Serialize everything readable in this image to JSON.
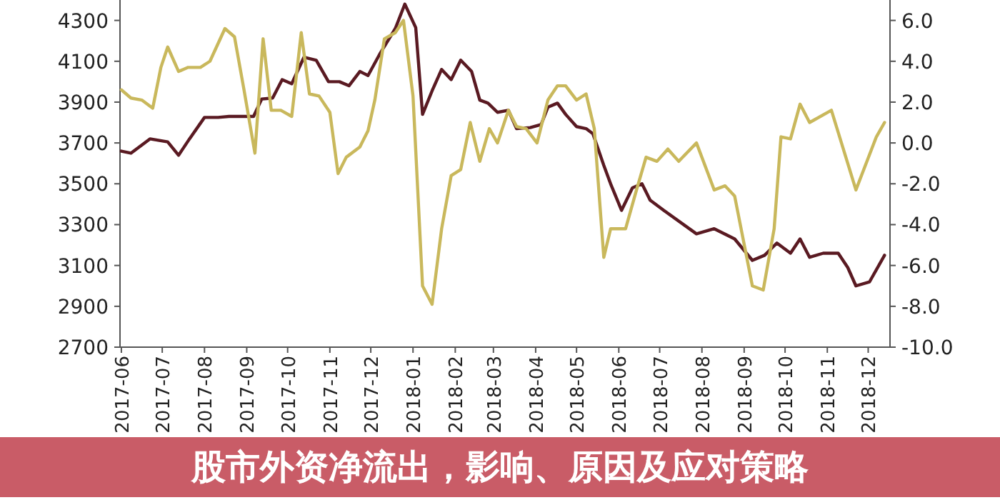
{
  "chart_data": {
    "type": "line",
    "title": "股市外资净流出，影响、原因及应对策略",
    "xlim": [
      "2017-05-31",
      "2018-12-17"
    ],
    "xticks": [
      "2017-06",
      "2017-07",
      "2017-08",
      "2017-09",
      "2017-10",
      "2017-11",
      "2017-12",
      "2018-01",
      "2018-02",
      "2018-03",
      "2018-04",
      "2018-05",
      "2018-06",
      "2018-07",
      "2018-08",
      "2018-09",
      "2018-10",
      "2018-11",
      "2018-12"
    ],
    "ylim": [
      2700,
      4400
    ],
    "yticks": [
      2700,
      2900,
      3100,
      3300,
      3500,
      3700,
      3900,
      4100,
      4300
    ],
    "y2lim": [
      -10,
      7
    ],
    "y2ticks": [
      {
        "value": -10,
        "label": "-10.0"
      },
      {
        "value": -8,
        "label": "-8.0"
      },
      {
        "value": -6,
        "label": "-6.0"
      },
      {
        "value": -4,
        "label": "-4.0"
      },
      {
        "value": -2,
        "label": "-2.0"
      },
      {
        "value": 0,
        "label": "0.0"
      },
      {
        "value": 2,
        "label": "2.0"
      },
      {
        "value": 4,
        "label": "4.0"
      },
      {
        "value": 6,
        "label": "6.0"
      }
    ],
    "grid": false,
    "series": [
      {
        "color": "#5a1a22",
        "x": [
          "2017-06-01",
          "2017-06-08",
          "2017-06-22",
          "2017-07-05",
          "2017-07-13",
          "2017-07-21",
          "2017-08-01",
          "2017-08-11",
          "2017-08-19",
          "2017-09-06",
          "2017-09-12",
          "2017-09-20",
          "2017-09-27",
          "2017-10-04",
          "2017-10-13",
          "2017-10-22",
          "2017-10-31",
          "2017-11-08",
          "2017-11-15",
          "2017-11-23",
          "2017-11-29",
          "2017-12-08",
          "2017-12-19",
          "2017-12-26",
          "2018-01-03",
          "2018-01-08",
          "2018-01-15",
          "2018-01-22",
          "2018-01-29",
          "2018-02-05",
          "2018-02-13",
          "2018-02-19",
          "2018-02-25",
          "2018-03-04",
          "2018-03-12",
          "2018-03-18",
          "2018-03-28",
          "2018-04-05",
          "2018-04-10",
          "2018-04-17",
          "2018-04-23",
          "2018-05-01",
          "2018-05-08",
          "2018-05-13",
          "2018-05-21",
          "2018-05-26",
          "2018-06-03",
          "2018-06-11",
          "2018-06-18",
          "2018-06-24",
          "2018-07-04",
          "2018-07-28",
          "2018-08-10",
          "2018-08-25",
          "2018-09-07",
          "2018-09-16",
          "2018-09-25",
          "2018-10-05",
          "2018-10-12",
          "2018-10-19",
          "2018-10-29",
          "2018-11-09",
          "2018-11-16",
          "2018-11-22",
          "2018-12-02",
          "2018-12-13"
        ],
        "values": [
          3660,
          3650,
          3720,
          3705,
          3640,
          3720,
          3825,
          3825,
          3830,
          3830,
          3915,
          3920,
          4010,
          3990,
          4120,
          4105,
          4000,
          4000,
          3980,
          4050,
          4030,
          4140,
          4260,
          4380,
          4265,
          3840,
          3955,
          4060,
          4010,
          4105,
          4050,
          3910,
          3895,
          3850,
          3860,
          3770,
          3775,
          3790,
          3875,
          3895,
          3840,
          3780,
          3770,
          3745,
          3590,
          3500,
          3370,
          3480,
          3500,
          3420,
          3370,
          3255,
          3280,
          3230,
          3125,
          3150,
          3210,
          3160,
          3230,
          3140,
          3160,
          3160,
          3090,
          3000,
          3020,
          3150
        ]
      },
      {
        "color": "#c9b85c",
        "axis": "y2",
        "x": [
          "2017-06-01",
          "2017-06-08",
          "2017-06-16",
          "2017-06-24",
          "2017-06-30",
          "2017-07-05",
          "2017-07-13",
          "2017-07-20",
          "2017-07-29",
          "2017-08-05",
          "2017-08-16",
          "2017-08-23",
          "2017-08-30",
          "2017-09-07",
          "2017-09-13",
          "2017-09-19",
          "2017-09-26",
          "2017-10-04",
          "2017-10-11",
          "2017-10-17",
          "2017-10-24",
          "2017-11-01",
          "2017-11-07",
          "2017-11-13",
          "2017-11-23",
          "2017-11-29",
          "2017-12-04",
          "2017-12-11",
          "2017-12-19",
          "2017-12-25",
          "2018-01-01",
          "2018-01-08",
          "2018-01-15",
          "2018-01-22",
          "2018-01-29",
          "2018-02-05",
          "2018-02-12",
          "2018-02-19",
          "2018-02-26",
          "2018-03-04",
          "2018-03-12",
          "2018-03-18",
          "2018-03-25",
          "2018-04-02",
          "2018-04-10",
          "2018-04-17",
          "2018-04-23",
          "2018-05-01",
          "2018-05-08",
          "2018-05-14",
          "2018-05-21",
          "2018-05-26",
          "2018-06-06",
          "2018-06-14",
          "2018-06-21",
          "2018-06-29",
          "2018-07-07",
          "2018-07-15",
          "2018-07-28",
          "2018-08-10",
          "2018-08-18",
          "2018-08-25",
          "2018-09-07",
          "2018-09-15",
          "2018-09-23",
          "2018-09-28",
          "2018-10-05",
          "2018-10-12",
          "2018-10-19",
          "2018-11-04",
          "2018-11-22",
          "2018-12-07",
          "2018-12-13"
        ],
        "values": [
          2.6,
          2.2,
          2.1,
          1.7,
          3.7,
          4.7,
          3.5,
          3.7,
          3.7,
          4.0,
          5.6,
          5.2,
          2.6,
          -0.5,
          5.1,
          1.6,
          1.6,
          1.3,
          5.4,
          2.4,
          2.3,
          1.5,
          -1.5,
          -0.7,
          -0.2,
          0.6,
          2.1,
          5.1,
          5.4,
          6.0,
          2.3,
          -7.0,
          -7.9,
          -4.2,
          -1.6,
          -1.3,
          1.0,
          -0.9,
          0.7,
          0.0,
          1.6,
          0.8,
          0.7,
          0.0,
          2.1,
          2.8,
          2.8,
          2.1,
          2.4,
          0.7,
          -5.6,
          -4.2,
          -4.2,
          -2.3,
          -0.7,
          -0.9,
          -0.3,
          -0.9,
          0.0,
          -2.3,
          -2.1,
          -2.6,
          -7.0,
          -7.2,
          -4.2,
          0.3,
          0.2,
          1.9,
          1.0,
          1.6,
          -2.3,
          0.3,
          1.0
        ]
      }
    ]
  }
}
